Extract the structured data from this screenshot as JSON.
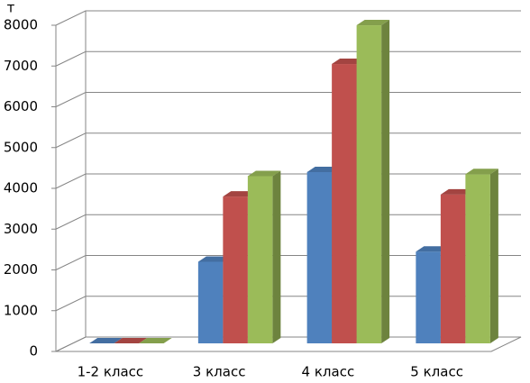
{
  "chart_data": {
    "type": "bar3d",
    "y_label": "т",
    "categories": [
      "1-2 класс",
      "3 класс",
      "4 класс",
      "5 класс"
    ],
    "series": [
      {
        "color": "#4f81bd",
        "values": [
          0,
          2000,
          4200,
          2250
        ]
      },
      {
        "color": "#c0504d",
        "values": [
          0,
          3600,
          6850,
          3650
        ]
      },
      {
        "color": "#9bbb59",
        "values": [
          0,
          4100,
          7800,
          4150
        ]
      }
    ],
    "ylim": [
      0,
      8000
    ],
    "yticks": [
      0,
      1000,
      2000,
      3000,
      4000,
      5000,
      6000,
      7000,
      8000
    ],
    "grid": true
  }
}
